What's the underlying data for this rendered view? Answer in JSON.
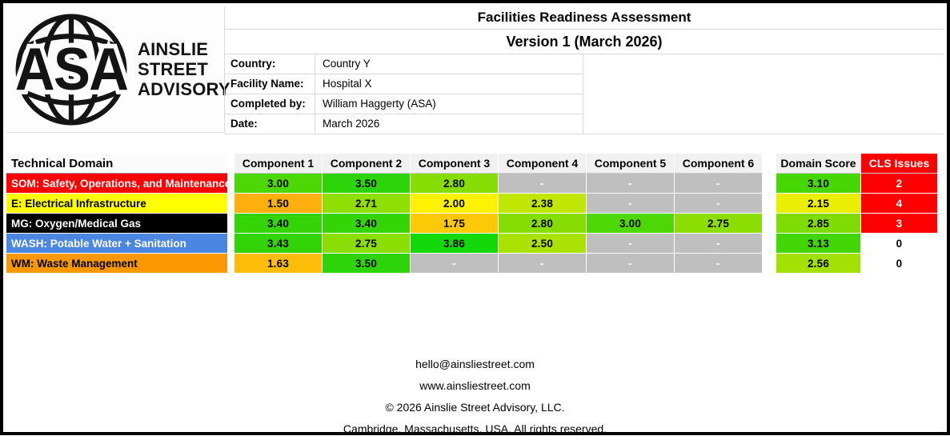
{
  "logo": {
    "acronym": "ASA",
    "name_lines": [
      "AINSLIE",
      "STREET",
      "ADVISORY"
    ]
  },
  "header": {
    "title": "Facilities Readiness Assessment",
    "version": "Version 1 (March 2026)",
    "fields": [
      {
        "label": "Country:",
        "value": "Country Y"
      },
      {
        "label": "Facility Name:",
        "value": "Hospital X"
      },
      {
        "label": "Completed by:",
        "value": "William Haggerty (ASA)"
      },
      {
        "label": "Date:",
        "value": "March 2026"
      }
    ]
  },
  "table": {
    "domain_header": "Technical Domain",
    "component_headers": [
      "Component 1",
      "Component 2",
      "Component 3",
      "Component 4",
      "Component 5",
      "Component 6"
    ],
    "score_header": "Domain Score",
    "cls_header": "CLS Issues",
    "colors": {
      "component_header_bg": "#f1f1f1",
      "domain_header_bg": "#fbfbfb",
      "cls_header_bg": "#ff0000",
      "cls_header_fg": "#ffffff",
      "na_bg": "#bfbfbf",
      "na_fg": "#ffffff"
    },
    "rows": [
      {
        "domain": "SOM: Safety, Operations, and Maintenance",
        "domain_bg": "#ff0000",
        "domain_fg": "#ffffff",
        "components": [
          {
            "v": "3.00",
            "bg": "#4dd805"
          },
          {
            "v": "3.50",
            "bg": "#2ed40a"
          },
          {
            "v": "2.80",
            "bg": "#85dd04"
          },
          {
            "v": "-",
            "bg": "#bfbfbf",
            "fg": "#ffffff"
          },
          {
            "v": "-",
            "bg": "#bfbfbf",
            "fg": "#ffffff"
          },
          {
            "v": "-",
            "bg": "#bfbfbf",
            "fg": "#ffffff"
          }
        ],
        "score": {
          "v": "3.10",
          "bg": "#46d705"
        },
        "cls": {
          "v": "2",
          "bg": "#ff0000",
          "fg": "#ffffff"
        }
      },
      {
        "domain": "E: Electrical Infrastructure",
        "domain_bg": "#ffff00",
        "domain_fg": "#000000",
        "components": [
          {
            "v": "1.50",
            "bg": "#fdb00d"
          },
          {
            "v": "2.71",
            "bg": "#90df04"
          },
          {
            "v": "2.00",
            "bg": "#fdf201"
          },
          {
            "v": "2.38",
            "bg": "#c0e602"
          },
          {
            "v": "-",
            "bg": "#bfbfbf",
            "fg": "#ffffff"
          },
          {
            "v": "-",
            "bg": "#bfbfbf",
            "fg": "#ffffff"
          }
        ],
        "score": {
          "v": "2.15",
          "bg": "#eaee03"
        },
        "cls": {
          "v": "4",
          "bg": "#ff0000",
          "fg": "#ffffff"
        }
      },
      {
        "domain": "MG: Oxygen/Medical Gas",
        "domain_bg": "#000000",
        "domain_fg": "#ffffff",
        "components": [
          {
            "v": "3.40",
            "bg": "#35d407"
          },
          {
            "v": "3.40",
            "bg": "#35d407"
          },
          {
            "v": "1.75",
            "bg": "#fdc907"
          },
          {
            "v": "2.80",
            "bg": "#85dd04"
          },
          {
            "v": "3.00",
            "bg": "#4dd805"
          },
          {
            "v": "2.75",
            "bg": "#8ade04"
          }
        ],
        "score": {
          "v": "2.85",
          "bg": "#7edc04"
        },
        "cls": {
          "v": "3",
          "bg": "#ff0000",
          "fg": "#ffffff"
        }
      },
      {
        "domain": "WASH: Potable Water + Sanitation",
        "domain_bg": "#4a86e2",
        "domain_fg": "#ffffff",
        "components": [
          {
            "v": "3.43",
            "bg": "#33d407"
          },
          {
            "v": "2.75",
            "bg": "#8ade04"
          },
          {
            "v": "3.86",
            "bg": "#13d909"
          },
          {
            "v": "2.50",
            "bg": "#aae203"
          },
          {
            "v": "-",
            "bg": "#bfbfbf",
            "fg": "#ffffff"
          },
          {
            "v": "-",
            "bg": "#bfbfbf",
            "fg": "#ffffff"
          }
        ],
        "score": {
          "v": "3.13",
          "bg": "#43d606"
        },
        "cls": {
          "v": "0",
          "bg": "#ffffff",
          "fg": "#000000"
        }
      },
      {
        "domain": "WM: Waste Management",
        "domain_bg": "#f99800",
        "domain_fg": "#000000",
        "components": [
          {
            "v": "1.63",
            "bg": "#fdbd08"
          },
          {
            "v": "3.50",
            "bg": "#2ed40a"
          },
          {
            "v": "-",
            "bg": "#bfbfbf",
            "fg": "#ffffff"
          },
          {
            "v": "-",
            "bg": "#bfbfbf",
            "fg": "#ffffff"
          },
          {
            "v": "-",
            "bg": "#bfbfbf",
            "fg": "#ffffff"
          },
          {
            "v": "-",
            "bg": "#bfbfbf",
            "fg": "#ffffff"
          }
        ],
        "score": {
          "v": "2.56",
          "bg": "#a2e103"
        },
        "cls": {
          "v": "0",
          "bg": "#ffffff",
          "fg": "#000000"
        }
      }
    ]
  },
  "footer": {
    "lines": [
      "hello@ainsliestreet.com",
      "www.ainsliestreet.com",
      "© 2026 Ainslie Street Advisory, LLC.",
      "Cambridge, Massachusetts, USA. All rights reserved."
    ]
  }
}
